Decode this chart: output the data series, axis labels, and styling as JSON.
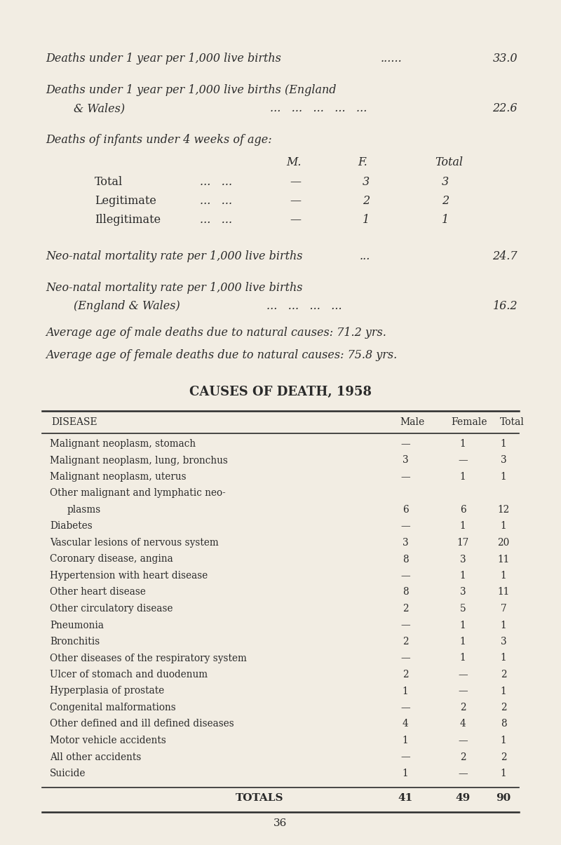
{
  "bg_color": "#f2ede3",
  "text_color": "#2a2a2a",
  "page_number": "36",
  "table_title": "CAUSES OF DEATH, 1958",
  "table_headers": [
    "DISEASE",
    "Male",
    "Female",
    "Total"
  ],
  "table_rows": [
    [
      "Malignant neoplasm, stomach",
      "—",
      "1",
      "1"
    ],
    [
      "Malignant neoplasm, lung, bronchus",
      "3",
      "—",
      "3"
    ],
    [
      "Malignant neoplasm, uterus",
      "—",
      "1",
      "1"
    ],
    [
      "Other malignant and lymphatic neo-",
      "",
      "",
      ""
    ],
    [
      "    plasms",
      "6",
      "6",
      "12"
    ],
    [
      "Diabetes",
      "—",
      "1",
      "1"
    ],
    [
      "Vascular lesions of nervous system",
      "3",
      "17",
      "20"
    ],
    [
      "Coronary disease, angina",
      "8",
      "3",
      "11"
    ],
    [
      "Hypertension with heart disease",
      "—",
      "1",
      "1"
    ],
    [
      "Other heart disease",
      "8",
      "3",
      "11"
    ],
    [
      "Other circulatory disease",
      "2",
      "5",
      "7"
    ],
    [
      "Pneumonia",
      "—",
      "1",
      "1"
    ],
    [
      "Bronchitis",
      "2",
      "1",
      "3"
    ],
    [
      "Other diseases of the respiratory system",
      "—",
      "1",
      "1"
    ],
    [
      "Ulcer of stomach and duodenum",
      "2",
      "—",
      "2"
    ],
    [
      "Hyperplasia of prostate",
      "1",
      "—",
      "1"
    ],
    [
      "Congenital malformations",
      "—",
      "2",
      "2"
    ],
    [
      "Other defined and ill defined diseases",
      "4",
      "4",
      "8"
    ],
    [
      "Motor vehicle accidents",
      "1",
      "—",
      "1"
    ],
    [
      "All other accidents",
      "—",
      "2",
      "2"
    ],
    [
      "Suicide",
      "1",
      "—",
      "1"
    ]
  ],
  "table_totals": [
    "TOTALS",
    "41",
    "49",
    "90"
  ]
}
